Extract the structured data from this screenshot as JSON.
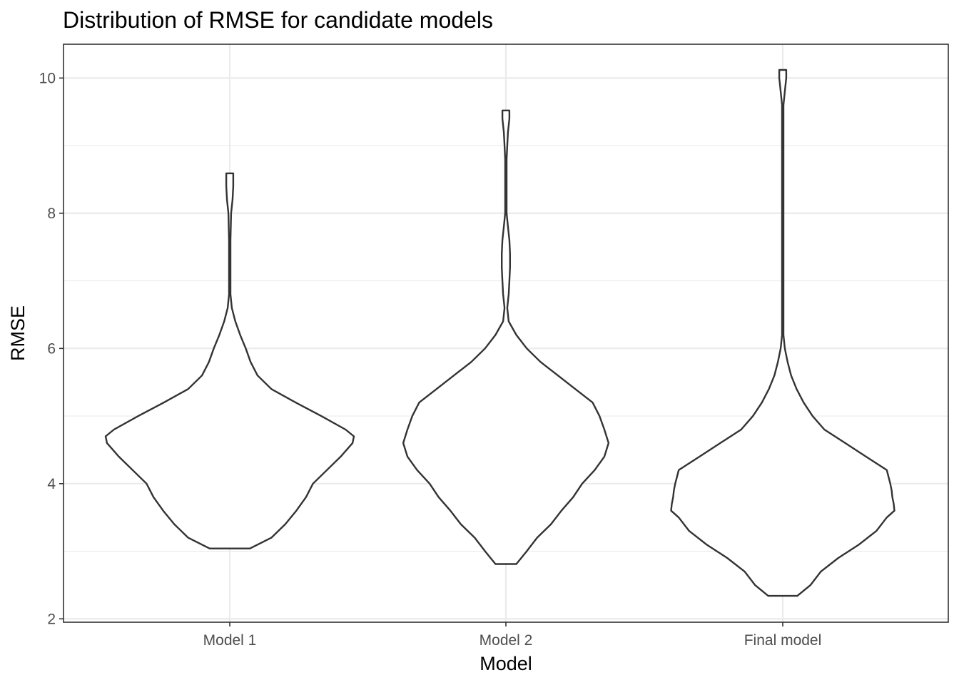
{
  "chart_data": {
    "type": "violin",
    "title": "Distribution of RMSE for candidate models",
    "xlabel": "Model",
    "ylabel": "RMSE",
    "categories": [
      "Model 1",
      "Model 2",
      "Final model"
    ],
    "ylim": [
      1.95,
      10.5
    ],
    "yticks": [
      2,
      4,
      6,
      8,
      10
    ],
    "ytick_labels": [
      "2",
      "4",
      "6",
      "8",
      "10"
    ],
    "grid": true,
    "legend": "none",
    "series": [
      {
        "category": "Model 1",
        "min": 3.04,
        "max": 8.59,
        "density_profile": [
          [
            3.04,
            0.29
          ],
          [
            3.2,
            0.6
          ],
          [
            3.4,
            0.8
          ],
          [
            3.6,
            0.96
          ],
          [
            3.8,
            1.1
          ],
          [
            4.0,
            1.2
          ],
          [
            4.2,
            1.4
          ],
          [
            4.4,
            1.6
          ],
          [
            4.6,
            1.77
          ],
          [
            4.7,
            1.79
          ],
          [
            4.8,
            1.67
          ],
          [
            5.0,
            1.32
          ],
          [
            5.2,
            0.95
          ],
          [
            5.4,
            0.6
          ],
          [
            5.6,
            0.4
          ],
          [
            5.8,
            0.3
          ],
          [
            6.0,
            0.23
          ],
          [
            6.2,
            0.15
          ],
          [
            6.4,
            0.08
          ],
          [
            6.6,
            0.03
          ],
          [
            6.8,
            0.01
          ],
          [
            7.2,
            0.01
          ],
          [
            7.6,
            0.01
          ],
          [
            8.0,
            0.02
          ],
          [
            8.2,
            0.04
          ],
          [
            8.4,
            0.05
          ],
          [
            8.59,
            0.05
          ]
        ]
      },
      {
        "category": "Model 2",
        "min": 2.81,
        "max": 9.52,
        "density_profile": [
          [
            2.81,
            0.15
          ],
          [
            3.0,
            0.3
          ],
          [
            3.2,
            0.45
          ],
          [
            3.4,
            0.65
          ],
          [
            3.6,
            0.8
          ],
          [
            3.8,
            0.97
          ],
          [
            4.0,
            1.1
          ],
          [
            4.2,
            1.28
          ],
          [
            4.4,
            1.42
          ],
          [
            4.6,
            1.48
          ],
          [
            4.8,
            1.42
          ],
          [
            5.0,
            1.35
          ],
          [
            5.2,
            1.25
          ],
          [
            5.4,
            1.0
          ],
          [
            5.6,
            0.75
          ],
          [
            5.8,
            0.5
          ],
          [
            6.0,
            0.3
          ],
          [
            6.2,
            0.15
          ],
          [
            6.4,
            0.04
          ],
          [
            6.6,
            0.02
          ],
          [
            6.8,
            0.04
          ],
          [
            7.0,
            0.05
          ],
          [
            7.2,
            0.06
          ],
          [
            7.4,
            0.06
          ],
          [
            7.6,
            0.05
          ],
          [
            7.8,
            0.03
          ],
          [
            8.0,
            0.01
          ],
          [
            8.4,
            0.01
          ],
          [
            8.8,
            0.01
          ],
          [
            9.0,
            0.02
          ],
          [
            9.2,
            0.03
          ],
          [
            9.4,
            0.05
          ],
          [
            9.52,
            0.05
          ]
        ]
      },
      {
        "category": "Final model",
        "min": 2.34,
        "max": 10.12,
        "density_profile": [
          [
            2.34,
            0.21
          ],
          [
            2.5,
            0.4
          ],
          [
            2.7,
            0.55
          ],
          [
            2.9,
            0.8
          ],
          [
            3.1,
            1.1
          ],
          [
            3.3,
            1.35
          ],
          [
            3.5,
            1.5
          ],
          [
            3.6,
            1.61
          ],
          [
            3.7,
            1.6
          ],
          [
            3.8,
            1.58
          ],
          [
            3.9,
            1.57
          ],
          [
            4.0,
            1.55
          ],
          [
            4.2,
            1.5
          ],
          [
            4.4,
            1.2
          ],
          [
            4.6,
            0.9
          ],
          [
            4.8,
            0.6
          ],
          [
            5.0,
            0.43
          ],
          [
            5.2,
            0.3
          ],
          [
            5.4,
            0.2
          ],
          [
            5.6,
            0.12
          ],
          [
            5.8,
            0.07
          ],
          [
            6.0,
            0.03
          ],
          [
            6.2,
            0.01
          ],
          [
            7.0,
            0.01
          ],
          [
            8.0,
            0.01
          ],
          [
            9.0,
            0.01
          ],
          [
            9.6,
            0.01
          ],
          [
            9.8,
            0.03
          ],
          [
            10.0,
            0.05
          ],
          [
            10.12,
            0.05
          ]
        ]
      }
    ]
  }
}
